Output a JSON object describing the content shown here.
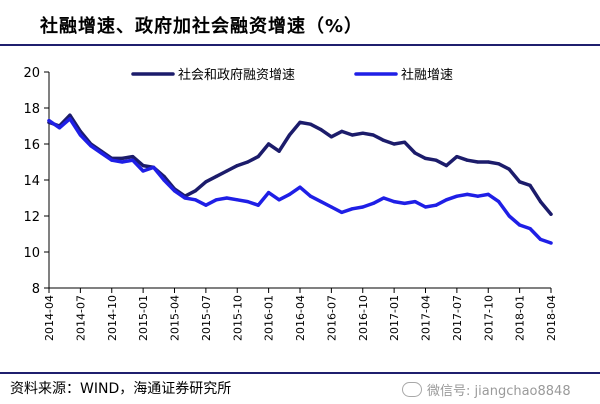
{
  "header": {
    "title": "社融增速、政府加社会融资增速（%）"
  },
  "footer": {
    "source": "资料来源：WIND，海通证券研究所",
    "watermark": "微信号: jiangchao8848",
    "watermark_icon": "wechat-icon"
  },
  "colors": {
    "series_1": "#1c1c6b",
    "series_2": "#1f1fe6",
    "rule": "#1f1f6e"
  },
  "chart_data": {
    "type": "line",
    "ylim": [
      8,
      20
    ],
    "yticks": [
      8,
      10,
      12,
      14,
      16,
      18,
      20
    ],
    "xlim": [
      "2014-04",
      "2018-04"
    ],
    "xticks": [
      "2014-04",
      "2014-07",
      "2014-10",
      "2015-01",
      "2015-04",
      "2015-07",
      "2015-10",
      "2016-01",
      "2016-04",
      "2016-07",
      "2016-10",
      "2017-01",
      "2017-04",
      "2017-07",
      "2017-10",
      "2018-01",
      "2018-04"
    ],
    "legend_position": "top",
    "grid": false,
    "series": [
      {
        "name": "社会和政府融资增速",
        "color": "#1c1c6b",
        "values": [
          [
            "2014-04",
            17.2
          ],
          [
            "2014-05",
            17.0
          ],
          [
            "2014-06",
            17.6
          ],
          [
            "2014-07",
            16.7
          ],
          [
            "2014-08",
            16.0
          ],
          [
            "2014-09",
            15.6
          ],
          [
            "2014-10",
            15.2
          ],
          [
            "2014-11",
            15.2
          ],
          [
            "2014-12",
            15.3
          ],
          [
            "2015-01",
            14.8
          ],
          [
            "2015-02",
            14.7
          ],
          [
            "2015-03",
            14.2
          ],
          [
            "2015-04",
            13.5
          ],
          [
            "2015-05",
            13.1
          ],
          [
            "2015-06",
            13.4
          ],
          [
            "2015-07",
            13.9
          ],
          [
            "2015-08",
            14.2
          ],
          [
            "2015-09",
            14.5
          ],
          [
            "2015-10",
            14.8
          ],
          [
            "2015-11",
            15.0
          ],
          [
            "2015-12",
            15.3
          ],
          [
            "2016-01",
            16.0
          ],
          [
            "2016-02",
            15.6
          ],
          [
            "2016-03",
            16.5
          ],
          [
            "2016-04",
            17.2
          ],
          [
            "2016-05",
            17.1
          ],
          [
            "2016-06",
            16.8
          ],
          [
            "2016-07",
            16.4
          ],
          [
            "2016-08",
            16.7
          ],
          [
            "2016-09",
            16.5
          ],
          [
            "2016-10",
            16.6
          ],
          [
            "2016-11",
            16.5
          ],
          [
            "2016-12",
            16.2
          ],
          [
            "2017-01",
            16.0
          ],
          [
            "2017-02",
            16.1
          ],
          [
            "2017-03",
            15.5
          ],
          [
            "2017-04",
            15.2
          ],
          [
            "2017-05",
            15.1
          ],
          [
            "2017-06",
            14.8
          ],
          [
            "2017-07",
            15.3
          ],
          [
            "2017-08",
            15.1
          ],
          [
            "2017-09",
            15.0
          ],
          [
            "2017-10",
            15.0
          ],
          [
            "2017-11",
            14.9
          ],
          [
            "2017-12",
            14.6
          ],
          [
            "2018-01",
            13.9
          ],
          [
            "2018-02",
            13.7
          ],
          [
            "2018-03",
            12.8
          ],
          [
            "2018-04",
            12.1
          ]
        ]
      },
      {
        "name": "社融增速",
        "color": "#1f1fe6",
        "values": [
          [
            "2014-04",
            17.3
          ],
          [
            "2014-05",
            16.9
          ],
          [
            "2014-06",
            17.4
          ],
          [
            "2014-07",
            16.5
          ],
          [
            "2014-08",
            15.9
          ],
          [
            "2014-09",
            15.5
          ],
          [
            "2014-10",
            15.1
          ],
          [
            "2014-11",
            15.0
          ],
          [
            "2014-12",
            15.1
          ],
          [
            "2015-01",
            14.5
          ],
          [
            "2015-02",
            14.7
          ],
          [
            "2015-03",
            14.0
          ],
          [
            "2015-04",
            13.4
          ],
          [
            "2015-05",
            13.0
          ],
          [
            "2015-06",
            12.9
          ],
          [
            "2015-07",
            12.6
          ],
          [
            "2015-08",
            12.9
          ],
          [
            "2015-09",
            13.0
          ],
          [
            "2015-10",
            12.9
          ],
          [
            "2015-11",
            12.8
          ],
          [
            "2015-12",
            12.6
          ],
          [
            "2016-01",
            13.3
          ],
          [
            "2016-02",
            12.9
          ],
          [
            "2016-03",
            13.2
          ],
          [
            "2016-04",
            13.6
          ],
          [
            "2016-05",
            13.1
          ],
          [
            "2016-06",
            12.8
          ],
          [
            "2016-07",
            12.5
          ],
          [
            "2016-08",
            12.2
          ],
          [
            "2016-09",
            12.4
          ],
          [
            "2016-10",
            12.5
          ],
          [
            "2016-11",
            12.7
          ],
          [
            "2016-12",
            13.0
          ],
          [
            "2017-01",
            12.8
          ],
          [
            "2017-02",
            12.7
          ],
          [
            "2017-03",
            12.8
          ],
          [
            "2017-04",
            12.5
          ],
          [
            "2017-05",
            12.6
          ],
          [
            "2017-06",
            12.9
          ],
          [
            "2017-07",
            13.1
          ],
          [
            "2017-08",
            13.2
          ],
          [
            "2017-09",
            13.1
          ],
          [
            "2017-10",
            13.2
          ],
          [
            "2017-11",
            12.8
          ],
          [
            "2017-12",
            12.0
          ],
          [
            "2018-01",
            11.5
          ],
          [
            "2018-02",
            11.3
          ],
          [
            "2018-03",
            10.7
          ],
          [
            "2018-04",
            10.5
          ]
        ]
      }
    ]
  }
}
